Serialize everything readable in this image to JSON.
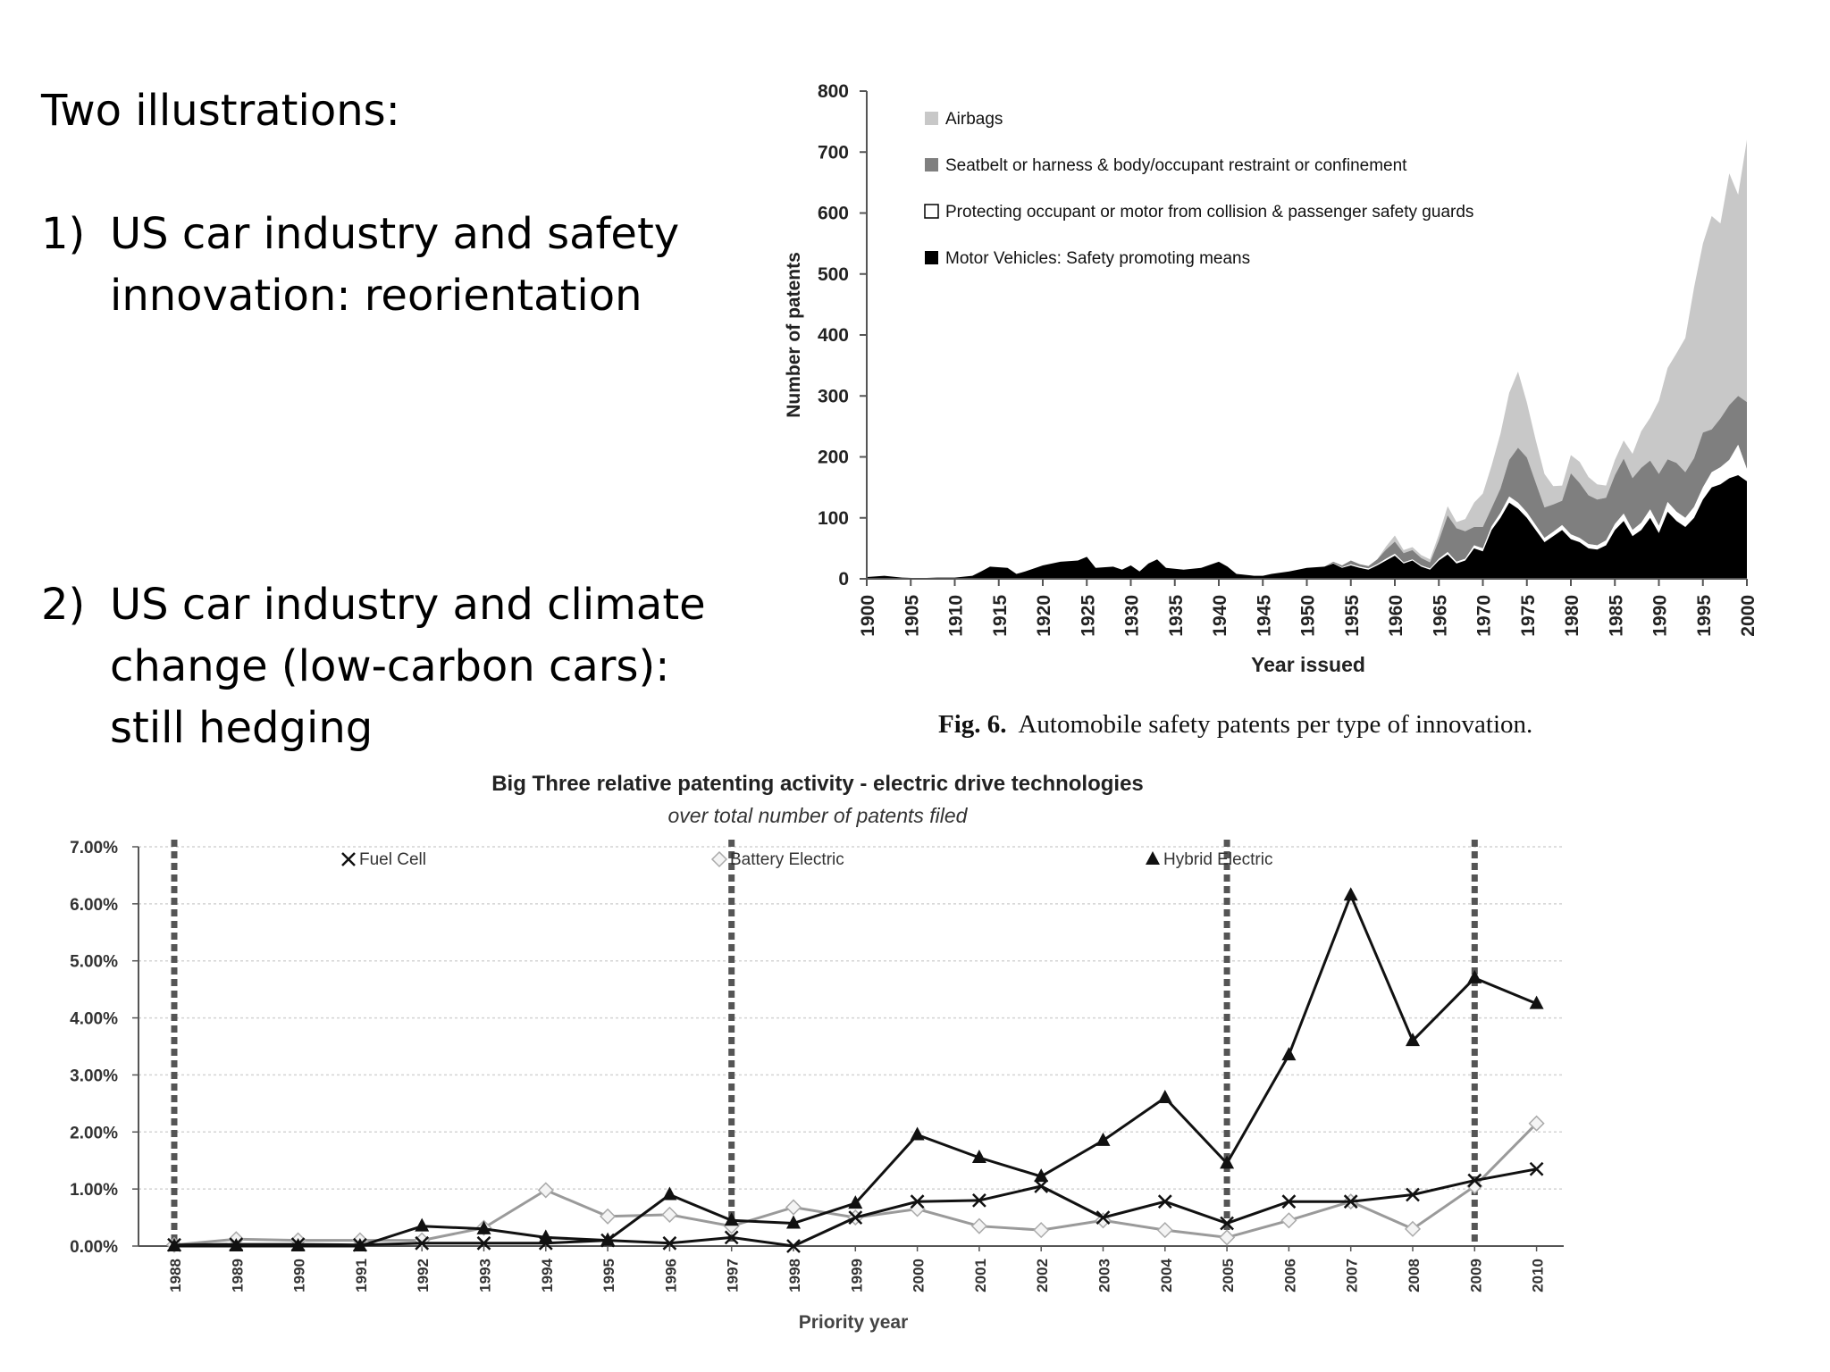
{
  "slide": {
    "heading": "Two illustrations:",
    "items": [
      {
        "number": "1)",
        "lines": [
          "US car industry and safety",
          "innovation: reorientation"
        ]
      },
      {
        "number": "2)",
        "lines": [
          "US car industry and climate",
          "change (low-carbon cars):",
          "still hedging"
        ]
      }
    ]
  },
  "caption": {
    "label": "Fig. 6.",
    "text": "Automobile safety patents per type of innovation."
  },
  "chart_data": [
    {
      "type": "area",
      "stacked": true,
      "title": "",
      "xlabel": "Year issued",
      "ylabel": "Number of patents",
      "ylim": [
        0,
        800
      ],
      "yticks": [
        "0",
        "100",
        "200",
        "300",
        "400",
        "500",
        "600",
        "700",
        "800"
      ],
      "xticks": [
        "1900",
        "1905",
        "1910",
        "1915",
        "1920",
        "1925",
        "1930",
        "1935",
        "1940",
        "1945",
        "1950",
        "1955",
        "1960",
        "1965",
        "1970",
        "1975",
        "1980",
        "1985",
        "1990",
        "1995",
        "2000"
      ],
      "legend_position": "top-left",
      "x": [
        1900,
        1902,
        1904,
        1906,
        1908,
        1910,
        1912,
        1913,
        1914,
        1916,
        1917,
        1918,
        1920,
        1922,
        1924,
        1925,
        1926,
        1928,
        1929,
        1930,
        1931,
        1932,
        1933,
        1934,
        1936,
        1938,
        1940,
        1941,
        1942,
        1944,
        1945,
        1946,
        1948,
        1950,
        1952,
        1953,
        1954,
        1955,
        1956,
        1957,
        1958,
        1959,
        1960,
        1961,
        1962,
        1963,
        1964,
        1965,
        1966,
        1967,
        1968,
        1969,
        1970,
        1971,
        1972,
        1973,
        1974,
        1975,
        1976,
        1977,
        1978,
        1979,
        1980,
        1981,
        1982,
        1983,
        1984,
        1985,
        1986,
        1987,
        1988,
        1989,
        1990,
        1991,
        1992,
        1993,
        1994,
        1995,
        1996,
        1997,
        1998,
        1999,
        2000
      ],
      "series": [
        {
          "name": "Motor Vehicles: Safety promoting means",
          "color": "#000000",
          "values": [
            3,
            5,
            2,
            1,
            2,
            2,
            5,
            12,
            20,
            18,
            8,
            12,
            22,
            28,
            30,
            36,
            18,
            20,
            15,
            22,
            12,
            25,
            32,
            18,
            15,
            18,
            28,
            20,
            8,
            5,
            5,
            8,
            12,
            18,
            20,
            25,
            18,
            22,
            18,
            15,
            22,
            30,
            38,
            25,
            30,
            20,
            15,
            30,
            40,
            25,
            30,
            50,
            45,
            80,
            100,
            125,
            115,
            100,
            80,
            60,
            70,
            80,
            65,
            60,
            50,
            48,
            55,
            80,
            95,
            70,
            80,
            100,
            75,
            110,
            95,
            85,
            100,
            130,
            150,
            155,
            165,
            170,
            160
          ]
        },
        {
          "name": "Protecting occupant or motor from collision & passenger safety guards",
          "color": "#ffffff",
          "values": [
            0,
            0,
            0,
            0,
            0,
            0,
            0,
            0,
            0,
            0,
            0,
            0,
            0,
            0,
            0,
            0,
            0,
            0,
            0,
            0,
            0,
            0,
            0,
            0,
            0,
            0,
            0,
            0,
            0,
            0,
            0,
            0,
            0,
            0,
            0,
            1,
            1,
            2,
            2,
            2,
            2,
            3,
            3,
            2,
            2,
            2,
            2,
            3,
            4,
            3,
            3,
            5,
            5,
            6,
            8,
            10,
            10,
            9,
            8,
            7,
            7,
            8,
            8,
            7,
            7,
            7,
            8,
            10,
            12,
            10,
            12,
            14,
            12,
            16,
            15,
            15,
            18,
            20,
            25,
            28,
            30,
            50,
            20
          ]
        },
        {
          "name": "Seatbelt or harness & body/occupant restraint or confinement",
          "color": "#7f7f7f",
          "values": [
            0,
            0,
            0,
            0,
            0,
            0,
            0,
            0,
            0,
            0,
            0,
            0,
            0,
            0,
            0,
            0,
            0,
            0,
            0,
            0,
            0,
            0,
            0,
            0,
            0,
            0,
            0,
            0,
            0,
            0,
            0,
            0,
            0,
            0,
            0,
            2,
            3,
            6,
            4,
            4,
            8,
            15,
            20,
            15,
            15,
            12,
            10,
            30,
            60,
            55,
            45,
            30,
            35,
            30,
            40,
            60,
            90,
            90,
            70,
            50,
            45,
            40,
            100,
            90,
            80,
            75,
            70,
            80,
            90,
            85,
            90,
            80,
            85,
            70,
            80,
            75,
            80,
            90,
            70,
            80,
            90,
            80,
            110
          ]
        },
        {
          "name": "Airbags",
          "color": "#c8c8c8",
          "values": [
            0,
            0,
            0,
            0,
            0,
            0,
            0,
            0,
            0,
            0,
            0,
            0,
            0,
            0,
            0,
            0,
            0,
            0,
            0,
            0,
            0,
            0,
            0,
            0,
            0,
            0,
            0,
            0,
            0,
            0,
            0,
            0,
            0,
            0,
            0,
            0,
            0,
            0,
            0,
            0,
            0,
            5,
            10,
            5,
            5,
            5,
            5,
            10,
            15,
            10,
            20,
            40,
            55,
            70,
            90,
            110,
            125,
            90,
            70,
            55,
            30,
            25,
            30,
            35,
            30,
            25,
            20,
            25,
            30,
            40,
            60,
            70,
            120,
            150,
            180,
            220,
            280,
            310,
            350,
            320,
            380,
            330,
            430
          ]
        }
      ]
    },
    {
      "type": "line",
      "title": "Big Three relative patenting activity - electric drive technologies",
      "subtitle": "over total number of patents filed",
      "xlabel": "Priority year",
      "ylabel": "",
      "ylim": [
        0,
        7
      ],
      "yticks": [
        "0.00%",
        "1.00%",
        "2.00%",
        "3.00%",
        "4.00%",
        "5.00%",
        "6.00%",
        "7.00%"
      ],
      "categories": [
        "1988",
        "1989",
        "1990",
        "1991",
        "1992",
        "1993",
        "1994",
        "1995",
        "1996",
        "1997",
        "1998",
        "1999",
        "2000",
        "2001",
        "2002",
        "2003",
        "2004",
        "2005",
        "2006",
        "2007",
        "2008",
        "2009",
        "2010"
      ],
      "vertical_markers": [
        "1988",
        "1997",
        "2005",
        "2009"
      ],
      "series": [
        {
          "name": "Fuel Cell",
          "marker": "x",
          "color": "#111111",
          "values": [
            0.02,
            0.03,
            0.03,
            0.02,
            0.05,
            0.05,
            0.05,
            0.1,
            0.05,
            0.15,
            0.0,
            0.5,
            0.78,
            0.8,
            1.05,
            0.5,
            0.78,
            0.4,
            0.78,
            0.78,
            0.9,
            1.15,
            1.35
          ]
        },
        {
          "name": "Battery Electric",
          "marker": "diamond",
          "color": "#9a9a9a",
          "values": [
            0.02,
            0.12,
            0.1,
            0.1,
            0.1,
            0.32,
            0.98,
            0.52,
            0.55,
            0.35,
            0.68,
            0.5,
            0.65,
            0.35,
            0.28,
            0.45,
            0.28,
            0.15,
            0.45,
            0.78,
            0.3,
            1.05,
            2.15
          ]
        },
        {
          "name": "Hybrid Electric",
          "marker": "triangle",
          "color": "#111111",
          "values": [
            0.0,
            0.0,
            0.0,
            0.0,
            0.35,
            0.3,
            0.15,
            0.1,
            0.9,
            0.45,
            0.4,
            0.75,
            1.95,
            1.55,
            1.22,
            1.85,
            2.6,
            1.45,
            3.35,
            6.15,
            3.6,
            4.7,
            4.25
          ]
        }
      ]
    }
  ]
}
